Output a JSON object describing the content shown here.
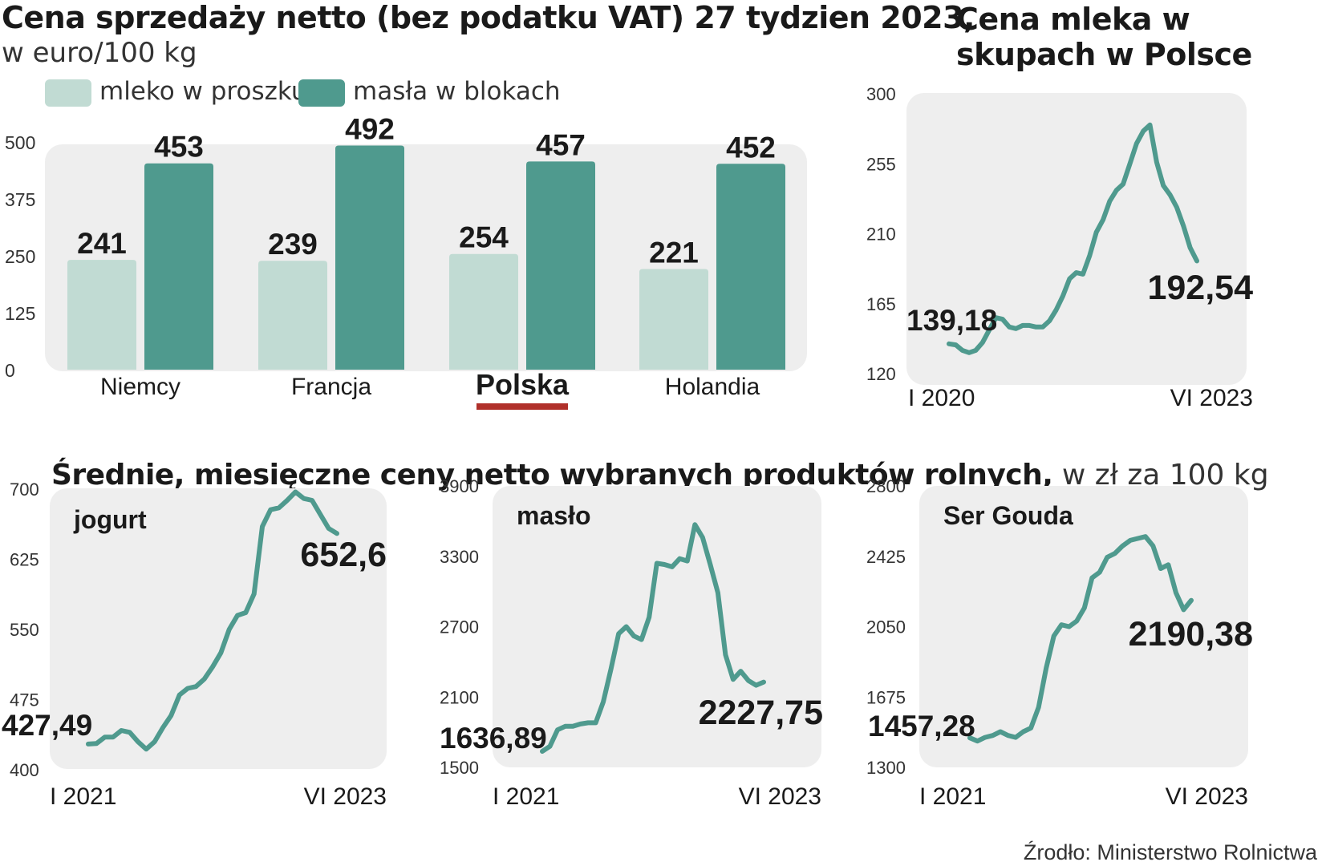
{
  "header": {
    "title_bold": "Cena sprzedaży netto (bez podatku VAT) 27 tydzien 2023,",
    "title_unit": "w euro/100 kg"
  },
  "legend": [
    {
      "label": "mleko w proszku",
      "color": "#c1dbd3"
    },
    {
      "label": "masła w blokach",
      "color": "#4f9a8e"
    }
  ],
  "milk_title": "Cena mleka w skupach w Polsce",
  "bottom": {
    "title_bold": "Średnie, miesięczne ceny netto wybranych produktów rolnych,",
    "title_unit": " w zł za 100 kg"
  },
  "source": "Źrodło: Ministerstwo Rolnictwa",
  "colors": {
    "panel": "#eeeeee",
    "line": "#4f9a8e",
    "light_bar": "#c1dbd3",
    "dark_bar": "#4f9a8e",
    "highlight": "#b0302a"
  },
  "chart_data": [
    {
      "type": "bar",
      "title": "Cena sprzedaży netto (bez podatku VAT) 27 tydzien 2023, w euro/100 kg",
      "categories": [
        "Niemcy",
        "Francja",
        "Polska",
        "Holandia"
      ],
      "highlight_category": "Polska",
      "series": [
        {
          "name": "mleko w proszku",
          "values": [
            241,
            239,
            254,
            221
          ]
        },
        {
          "name": "masła w blokach",
          "values": [
            453,
            492,
            457,
            452
          ]
        }
      ],
      "ylim": [
        0,
        500
      ],
      "yticks": [
        0,
        125,
        250,
        375,
        500
      ],
      "legend": "top"
    },
    {
      "type": "line",
      "title": "Cena mleka w skupach w Polsce",
      "x_labels": [
        "I 2020",
        "VI 2023"
      ],
      "ylim": [
        120,
        300
      ],
      "yticks": [
        120,
        165,
        210,
        255,
        300
      ],
      "start_label": "139,18",
      "end_label": "192,54",
      "values": [
        139.18,
        138.5,
        135,
        133.5,
        135,
        140,
        148,
        156,
        155,
        150,
        149,
        151,
        151,
        150,
        150,
        154,
        161,
        170,
        181,
        185,
        184,
        196,
        211,
        219,
        231,
        238,
        242,
        255,
        268,
        276,
        280,
        256,
        241,
        235,
        227,
        215,
        201,
        192.54
      ]
    },
    {
      "type": "line",
      "title": "jogurt",
      "x_labels": [
        "I 2021",
        "VI 2023"
      ],
      "ylim": [
        400,
        700
      ],
      "yticks": [
        400,
        475,
        550,
        625,
        700
      ],
      "start_label": "427,49",
      "end_label": "652,6",
      "values": [
        427.49,
        428,
        435,
        435,
        442,
        440,
        430,
        422,
        430,
        445,
        458,
        480,
        487,
        489,
        497,
        510,
        525,
        550,
        565,
        568,
        588,
        660,
        678,
        680,
        688,
        697,
        690,
        688,
        673,
        658,
        652.6
      ]
    },
    {
      "type": "line",
      "title": "masło",
      "x_labels": [
        "I 2021",
        "VI 2023"
      ],
      "ylim": [
        1500,
        3900
      ],
      "yticks": [
        1500,
        2100,
        2700,
        3300,
        3900
      ],
      "start_label": "1636,89",
      "end_label": "2227,75",
      "values": [
        1636.89,
        1680,
        1820,
        1850,
        1850,
        1870,
        1880,
        1880,
        2060,
        2340,
        2640,
        2700,
        2620,
        2590,
        2780,
        3240,
        3230,
        3210,
        3280,
        3260,
        3570,
        3460,
        3230,
        2990,
        2460,
        2250,
        2320,
        2240,
        2200,
        2227.75
      ]
    },
    {
      "type": "line",
      "title": "Ser Gouda",
      "x_labels": [
        "I 2021",
        "VI 2023"
      ],
      "ylim": [
        1300,
        2800
      ],
      "yticks": [
        1300,
        1675,
        2050,
        2425,
        2800
      ],
      "start_label": "1457,28",
      "end_label": "2190,38",
      "values": [
        1457.28,
        1440,
        1460,
        1470,
        1490,
        1470,
        1460,
        1490,
        1510,
        1620,
        1830,
        2000,
        2060,
        2050,
        2080,
        2150,
        2310,
        2340,
        2420,
        2440,
        2480,
        2510,
        2520,
        2530,
        2480,
        2360,
        2380,
        2230,
        2140,
        2190.38
      ]
    }
  ]
}
